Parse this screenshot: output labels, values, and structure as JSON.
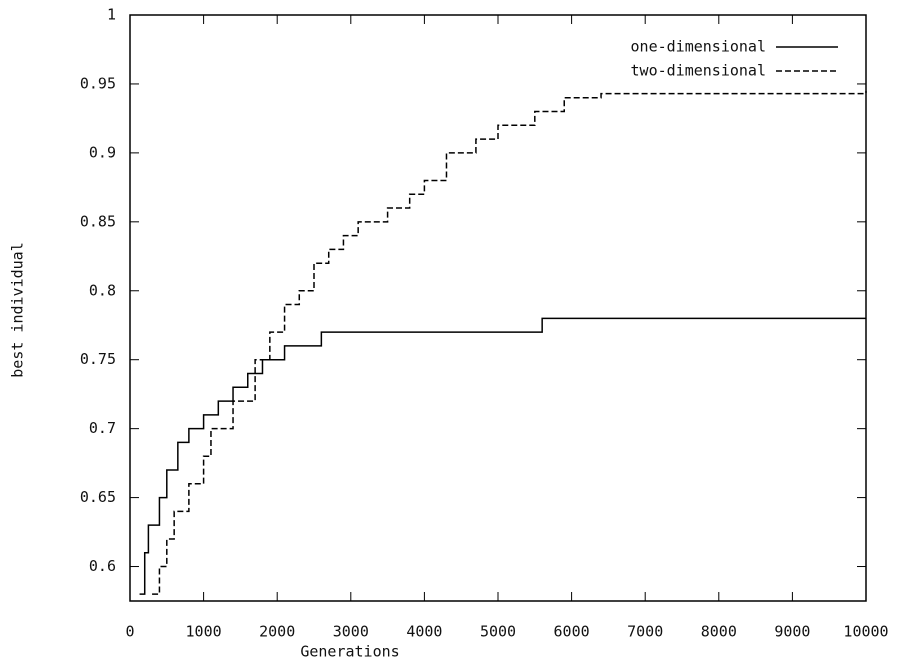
{
  "chart_data": {
    "type": "line",
    "step": true,
    "xlabel": "Generations",
    "ylabel": "best individual",
    "xlim": [
      0,
      10000
    ],
    "ylim": [
      0.575,
      1
    ],
    "xticks": [
      0,
      1000,
      2000,
      3000,
      4000,
      5000,
      6000,
      7000,
      8000,
      9000,
      10000
    ],
    "yticks": [
      0.6,
      0.65,
      0.7,
      0.75,
      0.8,
      0.85,
      0.9,
      0.95,
      1
    ],
    "legend": "top-right",
    "series": [
      {
        "name": "one-dimensional",
        "color": "#000000",
        "dash": "solid",
        "x": [
          130,
          200,
          250,
          400,
          500,
          650,
          800,
          1000,
          1200,
          1400,
          1600,
          1800,
          2100,
          2600,
          5600,
          10000
        ],
        "values": [
          0.58,
          0.61,
          0.63,
          0.65,
          0.67,
          0.69,
          0.7,
          0.71,
          0.72,
          0.73,
          0.74,
          0.75,
          0.76,
          0.77,
          0.78,
          0.78
        ]
      },
      {
        "name": "two-dimensional",
        "color": "#000000",
        "dash": "dashed",
        "x": [
          300,
          400,
          500,
          600,
          800,
          1000,
          1100,
          1400,
          1700,
          1900,
          2100,
          2300,
          2500,
          2700,
          2900,
          3100,
          3500,
          3800,
          4000,
          4300,
          4700,
          5000,
          5500,
          5900,
          6400,
          10000
        ],
        "values": [
          0.58,
          0.6,
          0.62,
          0.64,
          0.66,
          0.68,
          0.7,
          0.72,
          0.75,
          0.77,
          0.79,
          0.8,
          0.82,
          0.83,
          0.84,
          0.85,
          0.86,
          0.87,
          0.88,
          0.9,
          0.91,
          0.92,
          0.93,
          0.94,
          0.943,
          0.945
        ]
      }
    ]
  }
}
